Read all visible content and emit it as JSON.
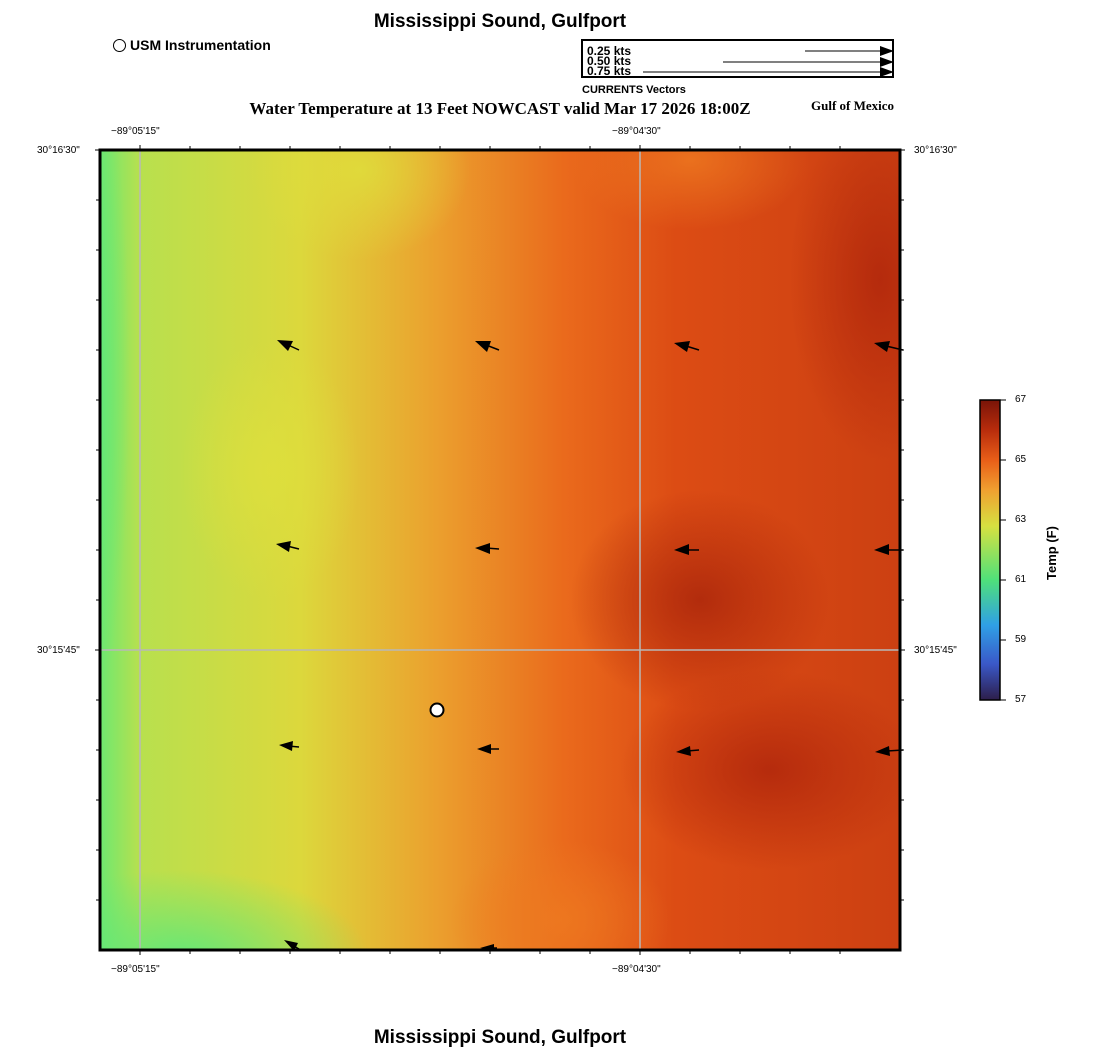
{
  "header": {
    "title": "Mississippi Sound, Gulfport",
    "subtitle": "Water Temperature at 13 Feet NOWCAST valid Mar 17 2026 18:00Z",
    "region_label": "Gulf of Mexico"
  },
  "footer": {
    "title": "Mississippi Sound, Gulfport"
  },
  "marker_legend": {
    "label": "USM Instrumentation",
    "icon": "open-circle-icon"
  },
  "vector_legend": {
    "caption": "CURRENTS Vectors",
    "entries": [
      {
        "label": "0.25 kts",
        "speed": 0.25
      },
      {
        "label": "0.50 kts",
        "speed": 0.5
      },
      {
        "label": "0.75 kts",
        "speed": 0.75
      }
    ]
  },
  "axes": {
    "top_ticks": [
      "−89°05'15\"",
      "−89°04'30\""
    ],
    "bottom_ticks": [
      "−89°05'15\"",
      "−89°04'30\""
    ],
    "left_ticks": [
      "30°16'30\"",
      "30°15'45\""
    ],
    "right_ticks": [
      "30°16'30\"",
      "30°15'45\""
    ]
  },
  "colorbar": {
    "title": "Temp (F)",
    "min": 57,
    "max": 67,
    "ticks": [
      "57",
      "59",
      "61",
      "63",
      "65",
      "67"
    ],
    "palette": [
      "#2d1e4a",
      "#3a58c8",
      "#2fa0e6",
      "#4fe07a",
      "#d7e040",
      "#f0a030",
      "#e85e18",
      "#b82c0c",
      "#7a1408"
    ]
  },
  "map": {
    "station": {
      "name": "USM Instrumentation"
    },
    "current_vectors_grid": "4 columns x 4 rows, flow toward west-northwest, speed approx 0.2 kts"
  }
}
